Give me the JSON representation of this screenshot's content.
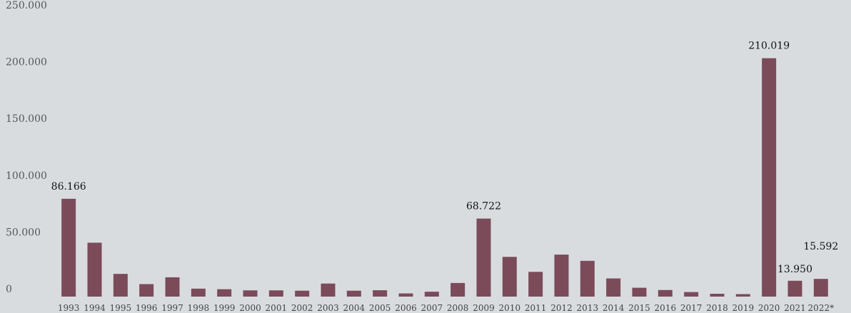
{
  "chart_data": {
    "type": "bar",
    "title": "",
    "xlabel": "",
    "ylabel": "",
    "ylim": [
      0,
      250000
    ],
    "y_ticks": [
      0,
      50000,
      100000,
      150000,
      200000,
      250000
    ],
    "y_tick_labels": [
      "0",
      "50.000",
      "100.000",
      "150.000",
      "200.000",
      "250.000"
    ],
    "grid": false,
    "legend": "none",
    "bar_color": "#7b4b5a",
    "background_color": "#d9dcdf",
    "categories": [
      "1993",
      "1994",
      "1995",
      "1996",
      "1997",
      "1998",
      "1999",
      "2000",
      "2001",
      "2002",
      "2003",
      "2004",
      "2005",
      "2006",
      "2007",
      "2008",
      "2009",
      "2010",
      "2011",
      "2012",
      "2013",
      "2014",
      "2015",
      "2016",
      "2017",
      "2018",
      "2019",
      "2020",
      "2021",
      "2022*"
    ],
    "values": [
      86166,
      47500,
      20000,
      11000,
      17000,
      7000,
      6500,
      5500,
      5500,
      5200,
      11500,
      5200,
      5600,
      2800,
      4300,
      12000,
      68722,
      35000,
      21800,
      37000,
      31500,
      16000,
      7800,
      5800,
      4000,
      2500,
      2200,
      210019,
      13950,
      15592
    ],
    "data_labels": [
      {
        "category": "1993",
        "text": "86.166"
      },
      {
        "category": "2009",
        "text": "68.722"
      },
      {
        "category": "2020",
        "text": "210.019"
      },
      {
        "category": "2021",
        "text": "13.950"
      },
      {
        "category": "2022*",
        "text": "15.592"
      }
    ]
  }
}
